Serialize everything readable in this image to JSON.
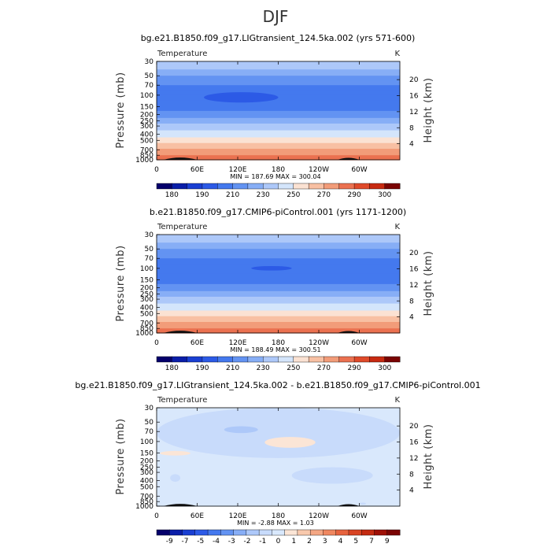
{
  "figure_title": "DJF",
  "chart_data": [
    {
      "type": "heatmap",
      "title": "bg.e21.B1850.f09_g17.LIGtransient_124.5ka.002 (yrs 571-600)",
      "left_label": "Temperature",
      "unit": "K",
      "ylabel": "Pressure (mb)",
      "ylabel_right": "Height (km)",
      "pressure_ticks": [
        30,
        50,
        70,
        100,
        150,
        200,
        250,
        300,
        400,
        500,
        700,
        850,
        1000
      ],
      "height_ticks": [
        4,
        8,
        12,
        16,
        20
      ],
      "lon_ticks": [
        "0",
        "60E",
        "120E",
        "180",
        "120W",
        "60W"
      ],
      "stats_text": "MIN = 187.69   MAX = 300.04",
      "min": 187.69,
      "max": 300.04,
      "levels": [
        180,
        185,
        190,
        200,
        210,
        220,
        230,
        240,
        250,
        260,
        270,
        280,
        290,
        295,
        300
      ],
      "colorbar_labels": [
        "180",
        "190",
        "210",
        "230",
        "250",
        "270",
        "290",
        "300"
      ],
      "colors": [
        "#05006b",
        "#0a1ea8",
        "#1a3fd2",
        "#2c5ae6",
        "#4479ee",
        "#6393f2",
        "#87aef6",
        "#adc8f9",
        "#d4e5fb",
        "#fbe2d3",
        "#f8c0a3",
        "#f29c79",
        "#eb7150",
        "#df4a2a",
        "#c72a11",
        "#7a0403"
      ],
      "profile": [
        {
          "p": 30,
          "v": 232
        },
        {
          "p": 40,
          "v": 225
        },
        {
          "p": 50,
          "v": 217
        },
        {
          "p": 60,
          "v": 212
        },
        {
          "p": 70,
          "v": 207
        },
        {
          "p": 85,
          "v": 202
        },
        {
          "p": 100,
          "v": 200
        },
        {
          "p": 120,
          "v": 202
        },
        {
          "p": 150,
          "v": 207
        },
        {
          "p": 175,
          "v": 212
        },
        {
          "p": 200,
          "v": 217
        },
        {
          "p": 225,
          "v": 222
        },
        {
          "p": 250,
          "v": 227
        },
        {
          "p": 275,
          "v": 232
        },
        {
          "p": 300,
          "v": 237
        },
        {
          "p": 350,
          "v": 242
        },
        {
          "p": 400,
          "v": 247
        },
        {
          "p": 450,
          "v": 252
        },
        {
          "p": 500,
          "v": 257
        },
        {
          "p": 550,
          "v": 262
        },
        {
          "p": 600,
          "v": 267
        },
        {
          "p": 675,
          "v": 272
        },
        {
          "p": 750,
          "v": 277
        },
        {
          "p": 850,
          "v": 283
        },
        {
          "p": 925,
          "v": 287
        },
        {
          "p": 1000,
          "v": 292
        }
      ],
      "features": [
        {
          "lon_start": 70,
          "lon_end": 180,
          "p_top": 90,
          "p_bottom": 130,
          "value": 195,
          "label": "cold tropopause pool"
        }
      ],
      "terrain": [
        {
          "lon_start": 10,
          "lon_end": 60,
          "p_top": 950
        },
        {
          "lon_start": 268,
          "lon_end": 300,
          "p_top": 970
        }
      ]
    },
    {
      "type": "heatmap",
      "title": "b.e21.B1850.f09_g17.CMIP6-piControl.001 (yrs 1171-1200)",
      "left_label": "Temperature",
      "unit": "K",
      "ylabel": "Pressure (mb)",
      "ylabel_right": "Height (km)",
      "pressure_ticks": [
        30,
        50,
        70,
        100,
        150,
        200,
        250,
        300,
        400,
        500,
        700,
        850,
        1000
      ],
      "height_ticks": [
        4,
        8,
        12,
        16,
        20
      ],
      "lon_ticks": [
        "0",
        "60E",
        "120E",
        "180",
        "120W",
        "60W"
      ],
      "stats_text": "MIN = 188.49   MAX = 300.51",
      "min": 188.49,
      "max": 300.51,
      "levels": [
        180,
        185,
        190,
        200,
        210,
        220,
        230,
        240,
        250,
        260,
        270,
        280,
        290,
        295,
        300
      ],
      "colorbar_labels": [
        "180",
        "190",
        "210",
        "230",
        "250",
        "270",
        "290",
        "300"
      ],
      "colors": [
        "#05006b",
        "#0a1ea8",
        "#1a3fd2",
        "#2c5ae6",
        "#4479ee",
        "#6393f2",
        "#87aef6",
        "#adc8f9",
        "#d4e5fb",
        "#fbe2d3",
        "#f8c0a3",
        "#f29c79",
        "#eb7150",
        "#df4a2a",
        "#c72a11",
        "#7a0403"
      ],
      "profile": [
        {
          "p": 30,
          "v": 232
        },
        {
          "p": 40,
          "v": 225
        },
        {
          "p": 50,
          "v": 217
        },
        {
          "p": 60,
          "v": 212
        },
        {
          "p": 70,
          "v": 207
        },
        {
          "p": 85,
          "v": 202
        },
        {
          "p": 100,
          "v": 200
        },
        {
          "p": 120,
          "v": 202
        },
        {
          "p": 150,
          "v": 207
        },
        {
          "p": 175,
          "v": 212
        },
        {
          "p": 200,
          "v": 217
        },
        {
          "p": 225,
          "v": 222
        },
        {
          "p": 250,
          "v": 227
        },
        {
          "p": 275,
          "v": 232
        },
        {
          "p": 300,
          "v": 237
        },
        {
          "p": 350,
          "v": 242
        },
        {
          "p": 400,
          "v": 247
        },
        {
          "p": 450,
          "v": 252
        },
        {
          "p": 500,
          "v": 257
        },
        {
          "p": 550,
          "v": 262
        },
        {
          "p": 600,
          "v": 267
        },
        {
          "p": 675,
          "v": 272
        },
        {
          "p": 750,
          "v": 277
        },
        {
          "p": 850,
          "v": 283
        },
        {
          "p": 925,
          "v": 287
        },
        {
          "p": 1000,
          "v": 292
        }
      ],
      "features": [
        {
          "lon_start": 140,
          "lon_end": 200,
          "p_top": 92,
          "p_bottom": 108,
          "value": 195,
          "label": "cold tropopause pool"
        }
      ],
      "terrain": [
        {
          "lon_start": 10,
          "lon_end": 60,
          "p_top": 950
        },
        {
          "lon_start": 268,
          "lon_end": 300,
          "p_top": 970
        }
      ]
    },
    {
      "type": "heatmap",
      "title": "bg.e21.B1850.f09_g17.LIGtransient_124.5ka.002 - b.e21.B1850.f09_g17.CMIP6-piControl.001",
      "left_label": "Temperature",
      "unit": "K",
      "ylabel": "Pressure (mb)",
      "ylabel_right": "Height (km)",
      "pressure_ticks": [
        30,
        50,
        70,
        100,
        150,
        200,
        250,
        300,
        400,
        500,
        700,
        850,
        1000
      ],
      "height_ticks": [
        4,
        8,
        12,
        16,
        20
      ],
      "lon_ticks": [
        "0",
        "60E",
        "120E",
        "180",
        "120W",
        "60W"
      ],
      "stats_text": "MIN = -2.88   MAX = 1.03",
      "min": -2.88,
      "max": 1.03,
      "levels": [
        -9,
        -8,
        -7,
        -6,
        -5,
        -4,
        -3,
        -2,
        -1,
        0,
        1,
        2,
        3,
        4,
        5,
        6,
        7,
        9
      ],
      "colorbar_labels": [
        "-9",
        "-7",
        "-5",
        "-4",
        "-3",
        "-2",
        "-1",
        "0",
        "1",
        "2",
        "3",
        "4",
        "5",
        "7",
        "9"
      ],
      "colors": [
        "#05006b",
        "#0a1ea8",
        "#1a3fd2",
        "#2c5ae6",
        "#4479ee",
        "#6393f2",
        "#87aef6",
        "#adc8f9",
        "#c8dbfb",
        "#d9e8fc",
        "#fbe5d6",
        "#f8c9ad",
        "#f4a784",
        "#ef8760",
        "#e6633e",
        "#d84424",
        "#c42b12",
        "#9e1006",
        "#7a0403"
      ],
      "profile": [
        {
          "p": 30,
          "v": -0.5
        },
        {
          "p": 300,
          "v": -0.5
        },
        {
          "p": 1000,
          "v": -0.5
        }
      ],
      "features": [
        {
          "lon_start": 0,
          "lon_end": 360,
          "p_top": 30,
          "p_bottom": 180,
          "value": -1.5,
          "label": "upper negative layer"
        },
        {
          "lon_start": 160,
          "lon_end": 235,
          "p_top": 85,
          "p_bottom": 125,
          "value": 0.5,
          "label": "warm anomaly"
        },
        {
          "lon_start": 5,
          "lon_end": 50,
          "p_top": 140,
          "p_bottom": 165,
          "value": 0.5,
          "label": "warm anomaly"
        },
        {
          "lon_start": 100,
          "lon_end": 150,
          "p_top": 58,
          "p_bottom": 74,
          "value": -2.5,
          "label": "cold anomaly"
        },
        {
          "lon_start": 200,
          "lon_end": 320,
          "p_top": 250,
          "p_bottom": 450,
          "value": -1.5,
          "label": "cold anomaly"
        },
        {
          "lon_start": 20,
          "lon_end": 35,
          "p_top": 320,
          "p_bottom": 420,
          "value": -1.5,
          "label": "cold anomaly"
        },
        {
          "lon_start": 300,
          "lon_end": 310,
          "p_top": 880,
          "p_bottom": 950,
          "value": -1.5,
          "label": "cold anomaly"
        }
      ],
      "terrain": [
        {
          "lon_start": 10,
          "lon_end": 60,
          "p_top": 950
        },
        {
          "lon_start": 268,
          "lon_end": 300,
          "p_top": 970
        }
      ]
    }
  ]
}
